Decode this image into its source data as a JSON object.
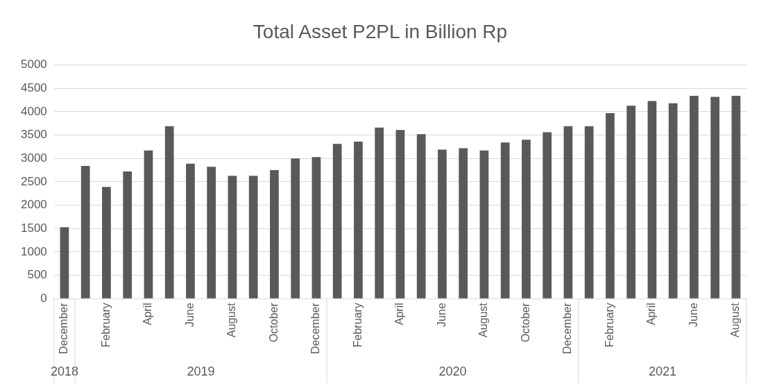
{
  "chart_data": {
    "type": "bar",
    "title": "Total Asset P2PL in Billion Rp",
    "categories": [
      "December",
      null,
      "February",
      null,
      "April",
      null,
      "June",
      null,
      "August",
      null,
      "October",
      null,
      "December",
      null,
      "February",
      null,
      "April",
      null,
      "June",
      null,
      "August",
      null,
      "October",
      null,
      "December",
      null,
      "February",
      null,
      "April",
      null,
      "June",
      null,
      "August"
    ],
    "values": [
      1530,
      2840,
      2390,
      2720,
      3170,
      3690,
      2890,
      2820,
      2630,
      2630,
      2750,
      3000,
      3030,
      3310,
      3360,
      3660,
      3610,
      3520,
      3190,
      3220,
      3170,
      3340,
      3400,
      3560,
      3690,
      3690,
      3970,
      4130,
      4230,
      4180,
      4340,
      4320,
      4340
    ],
    "color": "#595959",
    "annotations": [
      "2018",
      "2019",
      "2020",
      "2021"
    ],
    "ylim": [
      0,
      5000
    ],
    "yticks": [
      0,
      500,
      1000,
      1500,
      2000,
      2500,
      3000,
      3500,
      4000,
      4500,
      5000
    ],
    "grid": "y"
  }
}
